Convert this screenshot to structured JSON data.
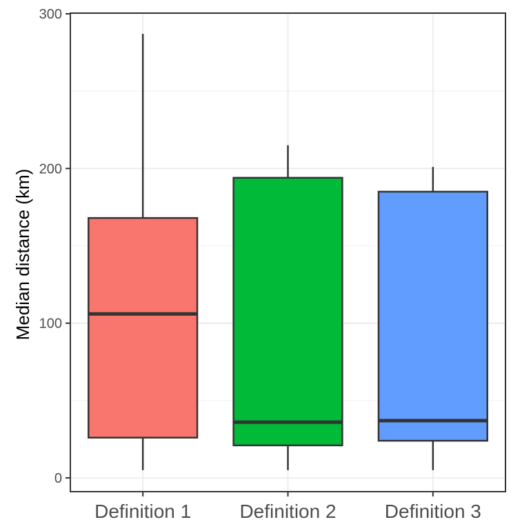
{
  "chart_data": {
    "type": "boxplot",
    "title": "",
    "xlabel": "",
    "ylabel": "Median distance (km)",
    "ylim": [
      -8,
      300
    ],
    "yticks": [
      0,
      100,
      200,
      300
    ],
    "grid": true,
    "legend": "none",
    "categories": [
      "Definition 1",
      "Definition 2",
      "Definition 3"
    ],
    "boxes": [
      {
        "category": "Definition 1",
        "min": 5,
        "q1": 26,
        "median": 106,
        "q3": 168,
        "max": 287,
        "color": "#F8766D"
      },
      {
        "category": "Definition 2",
        "min": 5,
        "q1": 21,
        "median": 36,
        "q3": 194,
        "max": 215,
        "color": "#00BA38"
      },
      {
        "category": "Definition 3",
        "min": 5,
        "q1": 24,
        "median": 37,
        "q3": 185,
        "max": 201,
        "color": "#619CFF"
      }
    ]
  }
}
